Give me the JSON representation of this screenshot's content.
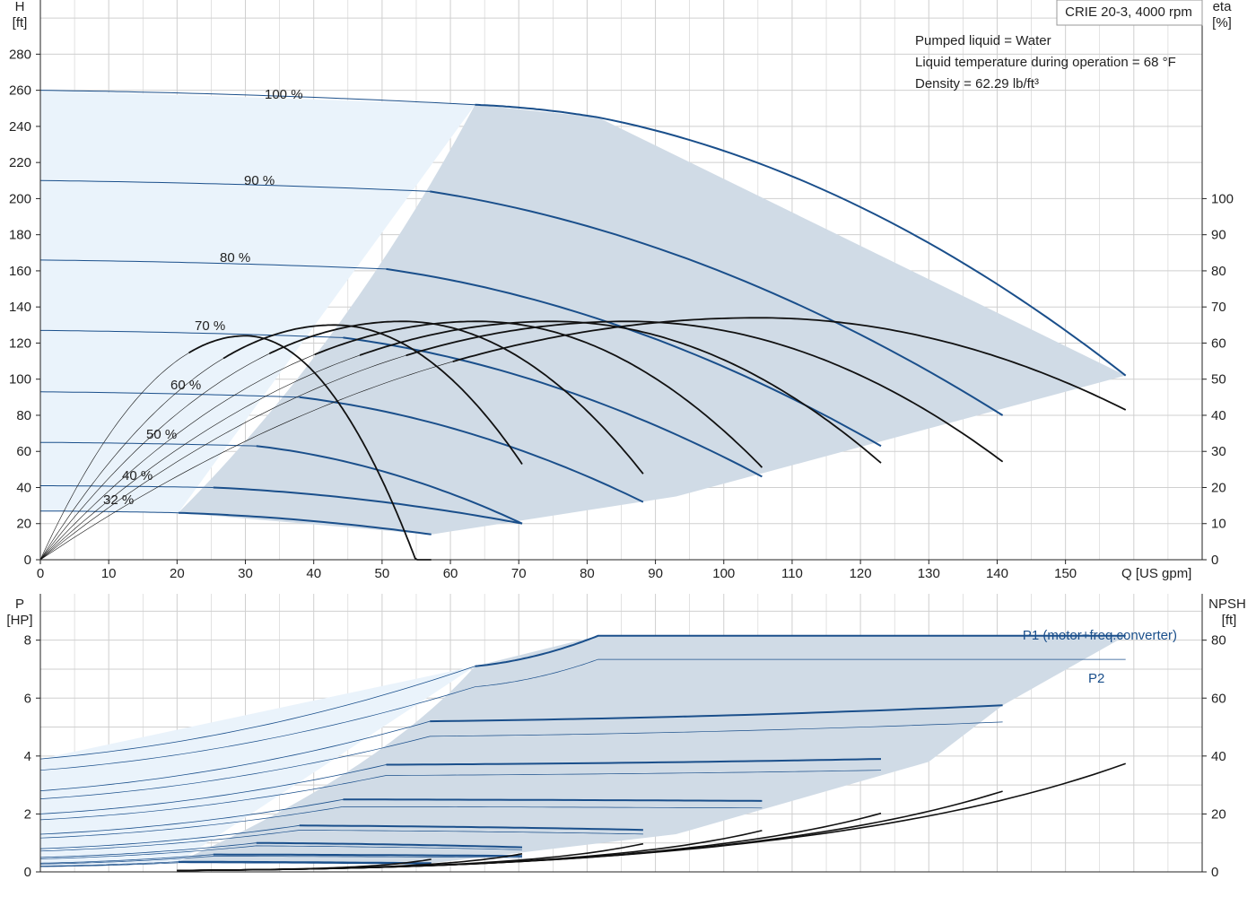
{
  "title": "CRIE 20-3, 4000 rpm",
  "info_lines": [
    "Pumped liquid = Water",
    "Liquid temperature during operation = 68 °F",
    "Density = 62.29 lb/ft³"
  ],
  "colors": {
    "grid": "#cfcfcf",
    "axis": "#222222",
    "curve_blue": "#1a4f8b",
    "curve_black": "#111111",
    "fill_light": "#eaf3fb",
    "fill_dark": "#d0dbe6",
    "p1_label": "#1a4f8b"
  },
  "chart_data": [
    {
      "type": "line",
      "name": "head",
      "xlabel": "Q [US gpm]",
      "ylabel": "H",
      "ylabel_unit": "[ft]",
      "y2label": "eta",
      "y2label_unit": "[%]",
      "xlim": [
        0,
        170
      ],
      "ylim": [
        0,
        310
      ],
      "y2lim": [
        0,
        155
      ],
      "xticks": [
        0,
        10,
        20,
        30,
        40,
        50,
        60,
        70,
        80,
        90,
        100,
        110,
        120,
        130,
        140,
        150
      ],
      "yticks": [
        0,
        20,
        40,
        60,
        80,
        100,
        120,
        140,
        160,
        180,
        200,
        220,
        240,
        260,
        280
      ],
      "y2ticks": [
        0,
        10,
        20,
        30,
        40,
        50,
        60,
        70,
        80,
        90,
        100
      ],
      "head_series": [
        {
          "name": "100 %",
          "x": [
            0,
            63.6,
            81.6,
            158.8
          ],
          "y": [
            260,
            252,
            245,
            102
          ]
        },
        {
          "name": "90 %",
          "x": [
            0,
            57.0,
            140.8
          ],
          "y": [
            210,
            204,
            80
          ]
        },
        {
          "name": "80 %",
          "x": [
            0,
            50.6,
            123.0
          ],
          "y": [
            166,
            161,
            63
          ]
        },
        {
          "name": "70 %",
          "x": [
            0,
            44.3,
            105.6
          ],
          "y": [
            127,
            123,
            46
          ]
        },
        {
          "name": "60 %",
          "x": [
            0,
            37.9,
            88.2
          ],
          "y": [
            93,
            90,
            32
          ]
        },
        {
          "name": "50 %",
          "x": [
            0,
            31.6,
            70.5
          ],
          "y": [
            65,
            63,
            20
          ]
        },
        {
          "name": "40 %",
          "x": [
            0,
            25.3,
            70.5
          ],
          "y": [
            41,
            40,
            20
          ]
        },
        {
          "name": "32 %",
          "x": [
            0,
            20.2,
            57.2
          ],
          "y": [
            27,
            26,
            14
          ]
        }
      ],
      "label_positions_note": "",
      "eta_series": [
        {
          "name": "eta 32 %",
          "peak_x": 30,
          "peak": 62,
          "end_x": 57.2
        },
        {
          "name": "eta 40 %",
          "peak_x": 43,
          "peak": 65,
          "end_x": 70.5
        },
        {
          "name": "eta 50 %",
          "peak_x": 53,
          "peak": 66,
          "end_x": 88.2
        },
        {
          "name": "eta 60 %",
          "peak_x": 64,
          "peak": 66,
          "end_x": 105.6
        },
        {
          "name": "eta 70 %",
          "peak_x": 75,
          "peak": 66,
          "end_x": 123.0
        },
        {
          "name": "eta 80 %",
          "peak_x": 86,
          "peak": 66,
          "end_x": 140.8
        },
        {
          "name": "eta 100 %",
          "peak_x": 105,
          "peak": 67,
          "end_x": 158.8
        }
      ]
    },
    {
      "type": "line",
      "name": "power",
      "xlabel": "",
      "ylabel": "P",
      "ylabel_unit": "[HP]",
      "y2label": "NPSH",
      "y2label_unit": "[ft]",
      "xlim": [
        0,
        170
      ],
      "ylim": [
        0,
        9.6
      ],
      "y2lim": [
        0,
        96
      ],
      "yticks": [
        0,
        2,
        4,
        6,
        8
      ],
      "y2ticks": [
        0,
        20,
        40,
        60,
        80
      ],
      "series_labels": [
        "P1 (motor+freq.converter)",
        "P2"
      ],
      "p1_series": [
        {
          "name": "100 %",
          "x": [
            0,
            63.6,
            81.6,
            158.8
          ],
          "y": [
            3.9,
            7.1,
            8.15,
            8.15
          ]
        },
        {
          "name": "90 %",
          "x": [
            0,
            57.0,
            140.8
          ],
          "y": [
            2.8,
            5.2,
            5.75
          ]
        },
        {
          "name": "80 %",
          "x": [
            0,
            50.6,
            123.0
          ],
          "y": [
            2.0,
            3.7,
            3.9
          ]
        },
        {
          "name": "70 %",
          "x": [
            0,
            44.3,
            105.6
          ],
          "y": [
            1.3,
            2.5,
            2.45
          ]
        },
        {
          "name": "60 %",
          "x": [
            0,
            37.9,
            88.2
          ],
          "y": [
            0.8,
            1.6,
            1.45
          ]
        },
        {
          "name": "50 %",
          "x": [
            0,
            31.6,
            70.5
          ],
          "y": [
            0.5,
            1.0,
            0.85
          ]
        },
        {
          "name": "40 %",
          "x": [
            0,
            25.3,
            70.5
          ],
          "y": [
            0.3,
            0.6,
            0.55
          ]
        },
        {
          "name": "32 %",
          "x": [
            0,
            20.2,
            57.2
          ],
          "y": [
            0.2,
            0.35,
            0.3
          ]
        }
      ],
      "npsh_curve": {
        "x": [
          20,
          60,
          100,
          140,
          158.8
        ],
        "y": [
          0.5,
          4,
          10,
          20,
          31
        ]
      }
    }
  ]
}
